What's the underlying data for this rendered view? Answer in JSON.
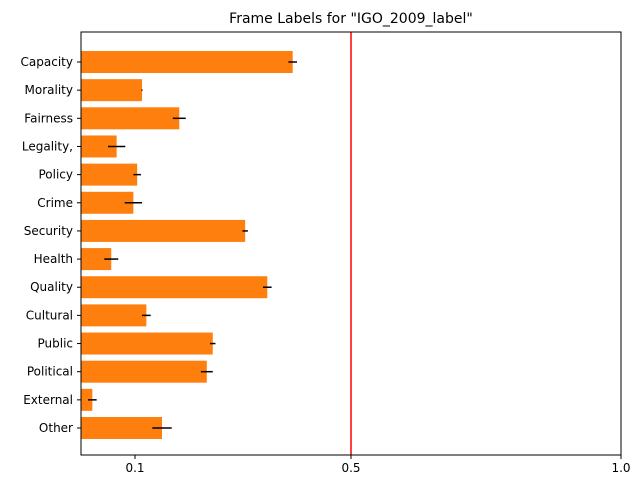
{
  "chart_data": {
    "type": "bar",
    "orientation": "horizontal",
    "title": "Frame Labels for \"IGO_2009_label\"",
    "xlabel": "",
    "ylabel": "",
    "xlim": [
      0.0,
      1.0
    ],
    "x_ticks": [
      0.1,
      0.5,
      1.0
    ],
    "x_tick_labels": [
      "0.1",
      "0.5",
      "1.0"
    ],
    "categories": [
      "Capacity",
      "Morality",
      "Fairness",
      "Legality,",
      "Policy",
      "Crime",
      "Security",
      "Health",
      "Quality",
      "Cultural",
      "Public",
      "Political",
      "External",
      "Other"
    ],
    "values": [
      0.392,
      0.113,
      0.182,
      0.066,
      0.104,
      0.097,
      0.304,
      0.056,
      0.345,
      0.121,
      0.244,
      0.233,
      0.021,
      0.15
    ],
    "errors": [
      0.008,
      0.001,
      0.012,
      0.016,
      0.007,
      0.016,
      0.005,
      0.013,
      0.008,
      0.008,
      0.005,
      0.011,
      0.008,
      0.018
    ],
    "bar_color": "#ff7f0e",
    "error_color": "#000000",
    "reference_line": {
      "x": 0.5,
      "color": "#ff0000"
    },
    "grid": false,
    "legend": "none"
  }
}
